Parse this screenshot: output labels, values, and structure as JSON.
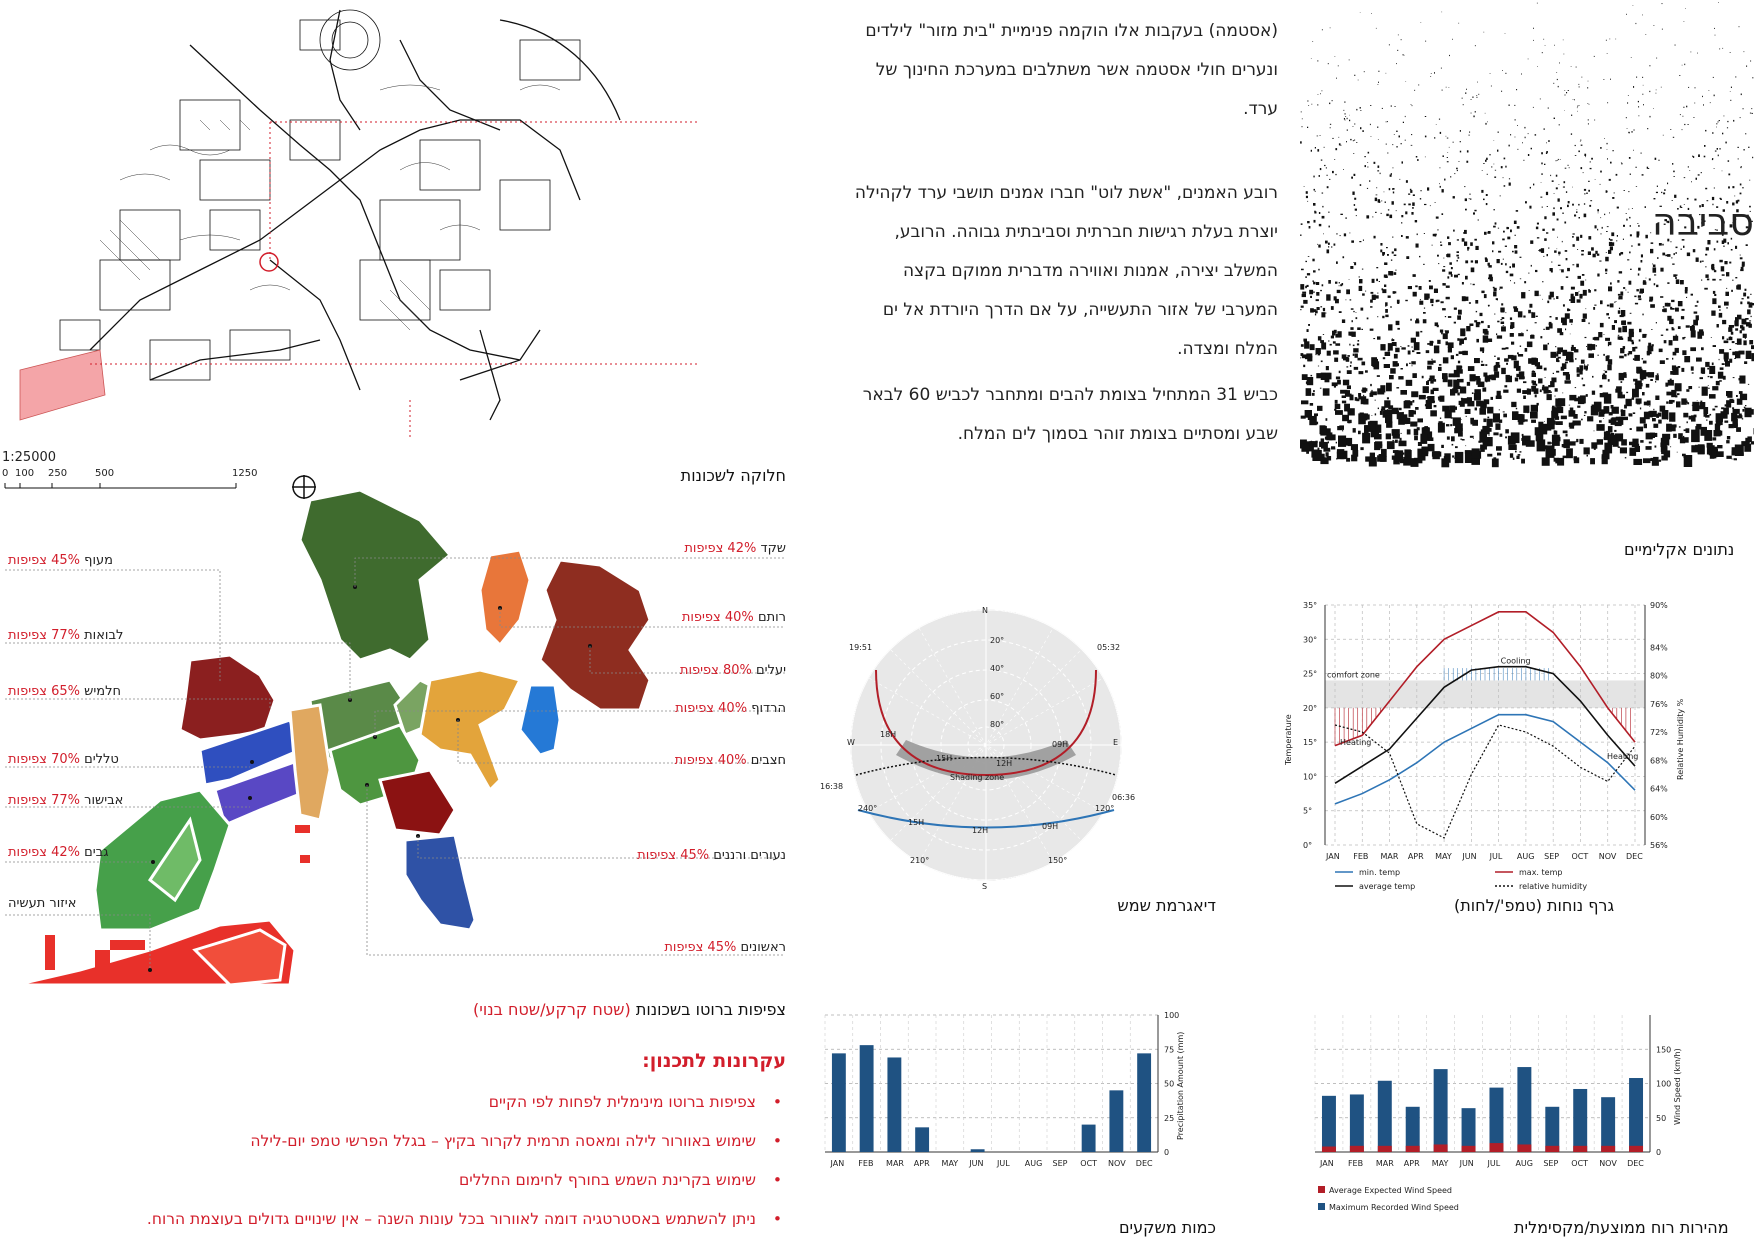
{
  "paragraphs": [
    {
      "lines": [
        "(אסטמה) בעקבות אלו הוקמה פנימיית \"בית מזור\" לילדים",
        "ונערים חולי אסטמה אשר משתלבים במערכת החינוך של",
        "ערד."
      ]
    },
    {
      "lines": [
        "רובע האמנים, \"אשת לוט\" חברו אמנים תושבי ערד לקהילה",
        "יוצרת בעלת רגישות חברתית וסביבתית גבוהה. הרובע,",
        "המשלב יצירה, אמנות ואווירה מדברית ממוקם בקצה",
        "המערבי של אזור התעשייה, על אם הדרך היורדת אל ים",
        "המלח ומצדה."
      ]
    },
    {
      "lines": [
        "כביש 31 המתחיל בצומת להבים ומתחבר לכביש 60 לבאר",
        "שבע ומסתיים בצומת זוהר בסמוך לים המלח."
      ]
    }
  ],
  "side_title": "סביבה",
  "scale": {
    "ratio": "1:25000",
    "ticks": [
      "0",
      "100",
      "250",
      "500",
      "1250"
    ]
  },
  "headers": {
    "neighborhoods": "חלוקה לשכונות",
    "climate": "נתונים אקלימיים",
    "sun": "דיאגרמת שמש",
    "comfort": "גרף נוחות (טמפ'/לחות)",
    "rain": "כמות משקעים",
    "wind": "מהירות רוח ממוצעת/מקסימלית"
  },
  "neighborhoods": [
    {
      "name": "מעוף",
      "density": "45% צפיפות",
      "side": "left"
    },
    {
      "name": "לבואות",
      "density": "77% צפיפות",
      "side": "left"
    },
    {
      "name": "חלמיש",
      "density": "65% צפיפות",
      "side": "left"
    },
    {
      "name": "טללים",
      "density": "70% צפיפות",
      "side": "left"
    },
    {
      "name": "אבישור",
      "density": "77% צפיפות",
      "side": "left"
    },
    {
      "name": "גבים",
      "density": "42% צפיפות",
      "side": "left"
    },
    {
      "name": "איזור תעשיה",
      "density": "",
      "side": "left"
    },
    {
      "name": "שקד",
      "density": "42% צפיפות",
      "side": "right"
    },
    {
      "name": "רותם",
      "density": "40% צפיפות",
      "side": "right"
    },
    {
      "name": "יעלים",
      "density": "80% צפיפות",
      "side": "right"
    },
    {
      "name": "הרדוף",
      "density": "40% צפיפות",
      "side": "right"
    },
    {
      "name": "חצבים",
      "density": "40% צפיפות",
      "side": "right"
    },
    {
      "name": "נעורים ורננים",
      "density": "45% צפיפות",
      "side": "right"
    },
    {
      "name": "ראשונים",
      "density": "45% צפיפות",
      "side": "right"
    }
  ],
  "density_title": {
    "main": "צפיפות ברוטו בשכונות",
    "paren": "(שטח קרקע/שטח בנוי)"
  },
  "principles_title": "עקרונות לתכנון:",
  "principles": [
    "צפיפות ברוטו מינימלית לפחות לפי הקיים",
    "שימוש באוורור לילה ומאסה תרמית לקרור בקיץ – בגלל הפרשי טמפ יום-לילה",
    "שימוש בקרינת השמש בחורף לחימום החללים",
    "ניתן להשתמש באסטרטגיה דומה לאוורור בכל עונות השנה – אין שינויים גדולים בעוצמת הרוח."
  ],
  "sun_diagram": {
    "north": "N",
    "south": "S",
    "west": "W",
    "east": "E",
    "altitudes": [
      "20°",
      "40°",
      "60°",
      "80°"
    ],
    "azimuths": [
      "240°",
      "120°",
      "210°",
      "150°"
    ],
    "summer_times": {
      "rise": "05:32",
      "set": "19:51",
      "h9": "09H",
      "h12": "12H",
      "h15": "15H",
      "h18": "18H"
    },
    "winter_times": {
      "rise": "06:36",
      "set": "16:38",
      "h9": "09H",
      "h12": "12H",
      "h15": "15H"
    },
    "shading_label": "Shading zone"
  },
  "chart_data": [
    {
      "type": "line",
      "categories": [
        "JAN",
        "FEB",
        "MAR",
        "APR",
        "MAY",
        "JUN",
        "JUL",
        "AUG",
        "SEP",
        "OCT",
        "NOV",
        "DEC"
      ],
      "ylabel": "Temperature",
      "y2label": "Relative Humidity %",
      "yticks": [
        "0°",
        "5°",
        "10°",
        "15°",
        "20°",
        "25°",
        "30°",
        "35°"
      ],
      "y2ticks": [
        "56%",
        "60%",
        "64%",
        "68%",
        "72%",
        "76%",
        "80%",
        "84%",
        "90%"
      ],
      "ylim": [
        0,
        35
      ],
      "series": [
        {
          "name": "min. temp",
          "color": "#2e75b6",
          "values": [
            6,
            7.5,
            9.5,
            12,
            15,
            17,
            19,
            19,
            18,
            15,
            12,
            8
          ]
        },
        {
          "name": "max. temp",
          "color": "#b21e28",
          "values": [
            14.5,
            16,
            21,
            26,
            30,
            32,
            34,
            34,
            31,
            26,
            20,
            15
          ]
        },
        {
          "name": "average temp",
          "color": "#111111",
          "values": [
            9,
            11.5,
            14,
            18.5,
            23,
            25.5,
            26,
            26,
            25,
            21,
            16,
            11.5
          ]
        },
        {
          "name": "relative humidity",
          "color": "#111111",
          "values": [
            73,
            72,
            69,
            59,
            57,
            66,
            73,
            72,
            70,
            67,
            65,
            70
          ]
        }
      ],
      "annotations": [
        "comfort zone",
        "Cooling",
        "Heating",
        "Heating"
      ]
    },
    {
      "type": "bar",
      "categories": [
        "JAN",
        "FEB",
        "MAR",
        "APR",
        "MAY",
        "JUN",
        "JUL",
        "AUG",
        "SEP",
        "OCT",
        "NOV",
        "DEC"
      ],
      "ylabel": "Precipitation Amount (mm)",
      "yticks": [
        "0",
        "25",
        "50",
        "75",
        "100"
      ],
      "ylim": [
        0,
        100
      ],
      "color": "#1f5282",
      "values": [
        72,
        78,
        69,
        18,
        0,
        2,
        0,
        0,
        0,
        20,
        45,
        72
      ]
    },
    {
      "type": "bar",
      "categories": [
        "JAN",
        "FEB",
        "MAR",
        "APR",
        "MAY",
        "JUN",
        "JUL",
        "AUG",
        "SEP",
        "OCT",
        "NOV",
        "DEC"
      ],
      "ylabel": "Wind Speed (km/h)",
      "yticks": [
        "0",
        "50",
        "100",
        "150"
      ],
      "ylim": [
        0,
        200
      ],
      "series": [
        {
          "name": "Maximum Recorded Wind Speed",
          "color": "#1f5282",
          "values": [
            82,
            84,
            104,
            66,
            121,
            64,
            94,
            124,
            66,
            92,
            80,
            108
          ]
        },
        {
          "name": "Average Expected Wind Speed",
          "color": "#b21e28",
          "values": [
            8,
            9,
            9,
            9,
            11,
            9,
            13,
            11,
            9,
            9,
            9,
            9
          ]
        }
      ]
    }
  ]
}
